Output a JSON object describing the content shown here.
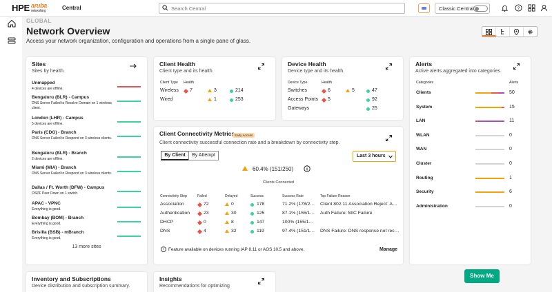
{
  "topbar": {
    "logo": "HPE",
    "logo_aruba": "aruba",
    "logo_net": "networking",
    "app_name": "Central",
    "search_placeholder": "Search Central",
    "classic_label": "Classic Central"
  },
  "header": {
    "scope": "GLOBAL",
    "title": "Network Overview",
    "subtitle": "Access your network organization, configuration and operations from a single pane of glass."
  },
  "sites": {
    "title": "Sites",
    "subtitle": "Sites by health.",
    "items": [
      {
        "name": "Unmapped",
        "desc": "4 devices are offline.",
        "status": "red"
      },
      {
        "name": "Bengaluru (BLR) - Campus",
        "desc": "DNS Server Failed to Resolve Domain on 1 wireless client.",
        "status": "green"
      },
      {
        "name": "London (LHR) - Campus",
        "desc": "5 devices are offline.",
        "status": "green"
      },
      {
        "name": "Paris (CDG) - Branch",
        "desc": "DNS Server Failed to Respond on 3 wireless clients.",
        "status": "green"
      },
      {
        "name": "Bengaluru (BLR) - Branch",
        "desc": "2 devices are offline.",
        "status": "green"
      },
      {
        "name": "Miami (MIA) - Branch",
        "desc": "DNS Server Failed to Respond on 3 wireless clients.",
        "status": "green"
      },
      {
        "name": "Dallas / Ft. Worth (DFW) - Campus",
        "desc": "OSPF Peer Down on 1 switch.",
        "status": "green"
      },
      {
        "name": "APAC - VPNC",
        "desc": "Everything is good.",
        "status": "green"
      },
      {
        "name": "Bombay (BOM) - Branch",
        "desc": "Everything is good.",
        "status": "green"
      },
      {
        "name": "Brisilla (BSB) - mBranch",
        "desc": "Everything is good.",
        "status": "green"
      }
    ],
    "more": "13 more sites"
  },
  "client_health": {
    "title": "Client Health",
    "subtitle": "Client type and its health.",
    "col_type": "Client Type",
    "col_health": "Health",
    "rows": [
      {
        "type": "Wireless",
        "red": "7",
        "warn": "3",
        "ok": "214"
      },
      {
        "type": "Wired",
        "red": "",
        "warn": "1",
        "ok": "253"
      }
    ]
  },
  "device_health": {
    "title": "Device Health",
    "subtitle": "Device type and its health.",
    "col_type": "Device Type",
    "col_health": "Health",
    "rows": [
      {
        "type": "Switches",
        "red": "6",
        "warn": "5",
        "ok": "47"
      },
      {
        "type": "Access Points",
        "red": "5",
        "warn": "",
        "ok": "92"
      },
      {
        "type": "Gateways",
        "red": "",
        "warn": "",
        "ok": "25"
      }
    ]
  },
  "alerts": {
    "title": "Alerts",
    "subtitle": "Active alerts aggregated into categories.",
    "col_categories": "Categories",
    "col_alerts": "Alerts",
    "rows": [
      {
        "name": "Clients",
        "count": "50",
        "fill": [
          0.55,
          0.25,
          0.2
        ],
        "colors": [
          "#f3a20a",
          "#e8534f",
          "#a34fc2"
        ]
      },
      {
        "name": "System",
        "count": "15",
        "fill": [
          0.9,
          0.1
        ],
        "colors": [
          "#f3a20a",
          "#e8534f"
        ]
      },
      {
        "name": "LAN",
        "count": "11",
        "fill": [
          0.1,
          0.9
        ],
        "colors": [
          "#e8534f",
          "#a34fc2"
        ]
      },
      {
        "name": "WLAN",
        "count": "0",
        "fill": [],
        "colors": []
      },
      {
        "name": "WAN",
        "count": "0",
        "fill": [],
        "colors": []
      },
      {
        "name": "Cluster",
        "count": "0",
        "fill": [],
        "colors": []
      },
      {
        "name": "Routing",
        "count": "1",
        "fill": [
          1
        ],
        "colors": [
          "#f3a20a"
        ]
      },
      {
        "name": "Security",
        "count": "6",
        "fill": [
          1
        ],
        "colors": [
          "#f3a20a"
        ]
      },
      {
        "name": "Administration",
        "count": "0",
        "fill": [],
        "colors": []
      }
    ]
  },
  "connectivity": {
    "title": "Client Connectivity Metrics",
    "badge": "Early Access",
    "subtitle": "Client connectivity successful connection rate and a breakdown by connectivity step.",
    "tab_client": "By Client",
    "tab_attempt": "By Attempt",
    "range": "Last 3 hours",
    "summary": "60.4% (151/250)",
    "summary_label": "Clients Connected",
    "columns": [
      "Connectivity Step",
      "Failed",
      "Delayed",
      "Success",
      "Success Rate",
      "Top Failure Reason"
    ],
    "rows": [
      {
        "step": "Association",
        "failed": "72",
        "delayed": "0",
        "success": "178",
        "rate": "71.2% (178/2…",
        "reason": "Client 802.11 Association Reject: A…"
      },
      {
        "step": "Authentication",
        "failed": "23",
        "delayed": "30",
        "success": "125",
        "rate": "87.1% (155/1…",
        "reason": "Auth Failure: MIC Failure"
      },
      {
        "step": "DHCP",
        "failed": "0",
        "delayed": "8",
        "success": "147",
        "rate": "100% (155/1…",
        "reason": ""
      },
      {
        "step": "DNS",
        "failed": "4",
        "delayed": "32",
        "success": "119",
        "rate": "97.4% (151/1…",
        "reason": "DNS Failure: DNS response not rec…"
      }
    ],
    "footnote": "Feature available on devices running IAP 8.11 or AOS 10.5 and above.",
    "manage": "Manage"
  },
  "inventory": {
    "title": "Inventory and Subscriptions",
    "subtitle": "Device distribution and subscription summary."
  },
  "insights": {
    "title": "Insights",
    "subtitle": "Recommendations for optimizing"
  },
  "show_me": "Show Me"
}
